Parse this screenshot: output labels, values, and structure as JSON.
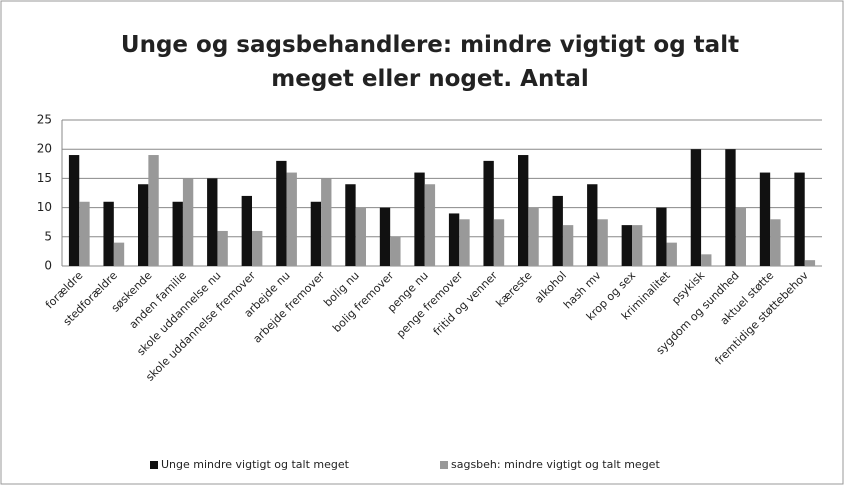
{
  "chart_data": {
    "type": "bar",
    "title": [
      "Unge og sagsbehandlere: mindre vigtigt og talt",
      "meget eller noget. Antal"
    ],
    "categories": [
      "forældre",
      "stedforældre",
      "søskende",
      "anden familie",
      "skole uddannelse nu",
      "skole uddannelse fremover",
      "arbejde nu",
      "arbejde fremover",
      "bolig nu",
      "bolig fremover",
      "penge nu",
      "penge fremover",
      "fritid og venner",
      "kæreste",
      "alkohol",
      "hash mv",
      "krop og sex",
      "kriminalitet",
      "psykisk",
      "sygdom og sundhed",
      "aktuel støtte",
      "fremtidige støttebehov"
    ],
    "series": [
      {
        "name": "Unge mindre vigtigt og talt meget",
        "color": "#111111",
        "values": [
          19,
          11,
          14,
          11,
          15,
          12,
          18,
          11,
          14,
          10,
          16,
          9,
          18,
          19,
          12,
          14,
          7,
          10,
          20,
          20,
          16,
          16
        ]
      },
      {
        "name": "sagsbeh: mindre vigtigt og talt meget",
        "color": "#999999",
        "values": [
          11,
          4,
          19,
          15,
          6,
          6,
          16,
          15,
          10,
          5,
          14,
          8,
          8,
          10,
          7,
          8,
          7,
          4,
          2,
          10,
          8,
          1
        ]
      }
    ],
    "ylim": [
      0,
      25
    ],
    "yticks": [
      0,
      5,
      10,
      15,
      20,
      25
    ],
    "grid": true,
    "legend": "bottom"
  }
}
